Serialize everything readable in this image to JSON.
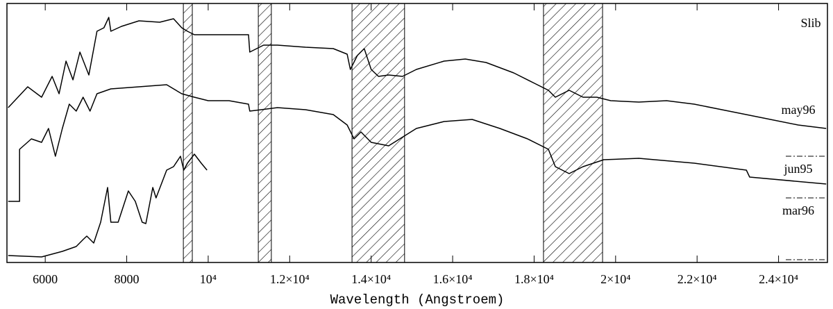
{
  "chart_data": {
    "type": "line",
    "xlabel": "Wavelength (Angstroem)",
    "annotation": "Slib",
    "xlim": [
      5060,
      25200
    ],
    "ylim": [
      0,
      373
    ],
    "xticks": [
      6000,
      8000,
      {
        "value": 10000,
        "label": "10⁴"
      },
      {
        "value": 12000,
        "label": "1.2×10⁴"
      },
      {
        "value": 14000,
        "label": "1.4×10⁴"
      },
      {
        "value": 16000,
        "label": "1.6×10⁴"
      },
      {
        "value": 18000,
        "label": "1.8×10⁴"
      },
      {
        "value": 20000,
        "label": "2×10⁴"
      },
      {
        "value": 22000,
        "label": "2.2×10⁴"
      },
      {
        "value": 24000,
        "label": "2.4×10⁴"
      }
    ],
    "bands": [
      [
        9390,
        9610
      ],
      [
        11230,
        11550
      ],
      [
        13530,
        14820
      ],
      [
        18230,
        19680
      ]
    ],
    "series": [
      {
        "name": "may96",
        "color": "#000000",
        "x": [
          5090,
          5570,
          5910,
          6170,
          6340,
          6510,
          6680,
          6850,
          7070,
          7270,
          7440,
          7560,
          7610,
          7870,
          8300,
          8810,
          9150,
          9350,
          9490,
          9660,
          10000,
          10510,
          10990,
          11020,
          11360,
          11700,
          12390,
          13070,
          13410,
          13490,
          13660,
          13830,
          14000,
          14180,
          14430,
          14770,
          15110,
          15790,
          16310,
          16820,
          17500,
          18010,
          18350,
          18520,
          18860,
          19200,
          19540,
          19880,
          20570,
          21250,
          21930,
          22780,
          23630,
          24480,
          25170
        ],
        "values": [
          223,
          253,
          238,
          268,
          243,
          290,
          263,
          303,
          270,
          333,
          338,
          353,
          333,
          340,
          348,
          346,
          351,
          338,
          333,
          328,
          328,
          328,
          328,
          303,
          313,
          313,
          310,
          308,
          300,
          278,
          298,
          308,
          278,
          268,
          270,
          268,
          278,
          290,
          293,
          288,
          273,
          258,
          248,
          238,
          248,
          238,
          238,
          233,
          231,
          233,
          228,
          218,
          208,
          198,
          193
        ]
      },
      {
        "name": "jun95",
        "color": "#000000",
        "x": [
          5090,
          5370,
          5370,
          5660,
          5910,
          6080,
          6250,
          6420,
          6590,
          6760,
          6930,
          7100,
          7270,
          7610,
          8300,
          8980,
          9350,
          9660,
          10000,
          10510,
          10990,
          11020,
          11700,
          12390,
          13070,
          13410,
          13580,
          13750,
          14000,
          14430,
          15110,
          15790,
          16480,
          17160,
          17840,
          18350,
          18520,
          18860,
          19200,
          19710,
          20570,
          21930,
          23210,
          23290,
          25170
        ],
        "values": [
          88,
          88,
          163,
          178,
          173,
          193,
          153,
          193,
          228,
          218,
          238,
          218,
          243,
          250,
          253,
          256,
          243,
          238,
          233,
          233,
          228,
          218,
          223,
          220,
          213,
          198,
          178,
          188,
          173,
          168,
          193,
          203,
          206,
          193,
          178,
          163,
          138,
          128,
          138,
          148,
          150,
          143,
          133,
          123,
          113
        ]
      },
      {
        "name": "mar96",
        "color": "#000000",
        "x": [
          5090,
          5910,
          6420,
          6760,
          6930,
          7020,
          7190,
          7360,
          7530,
          7610,
          7790,
          8040,
          8210,
          8380,
          8470,
          8640,
          8720,
          8980,
          9150,
          9320,
          9400,
          9490,
          9660,
          9830,
          9970
        ],
        "values": [
          10,
          8,
          16,
          23,
          33,
          38,
          28,
          58,
          108,
          58,
          58,
          103,
          88,
          58,
          56,
          108,
          93,
          133,
          138,
          153,
          133,
          143,
          156,
          143,
          133
        ]
      }
    ]
  }
}
